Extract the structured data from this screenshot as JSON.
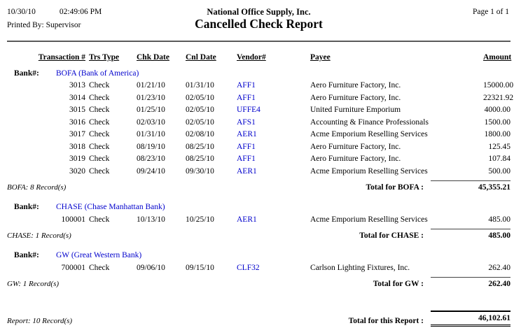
{
  "header": {
    "date": "10/30/10",
    "time": "02:49:06 PM",
    "printed_by": "Printed By: Supervisor",
    "company": "National Office Supply, Inc.",
    "title": "Cancelled Check Report",
    "page_info": "Page 1 of 1"
  },
  "columns": [
    "Transaction #",
    "Trs Type",
    "Chk Date",
    "Cnl Date",
    "Vendor#",
    "Payee",
    "Amount"
  ],
  "banks": [
    {
      "bank_label": "Bank#:",
      "bank_name": "BOFA (Bank of America)",
      "rows": [
        {
          "txn": "3013",
          "type": "Check",
          "chk": "01/21/10",
          "cnl": "01/31/10",
          "vendor": "AFF1",
          "payee": "Aero Furniture Factory, Inc.",
          "amount": "15000.00"
        },
        {
          "txn": "3014",
          "type": "Check",
          "chk": "01/23/10",
          "cnl": "02/05/10",
          "vendor": "AFF1",
          "payee": "Aero Furniture Factory, Inc.",
          "amount": "22321.92"
        },
        {
          "txn": "3015",
          "type": "Check",
          "chk": "01/25/10",
          "cnl": "02/05/10",
          "vendor": "UFFE4",
          "payee": "United Furniture Emporium",
          "amount": "4000.00"
        },
        {
          "txn": "3016",
          "type": "Check",
          "chk": "02/03/10",
          "cnl": "02/05/10",
          "vendor": "AFS1",
          "payee": "Accounting & Finance Professionals",
          "amount": "1500.00"
        },
        {
          "txn": "3017",
          "type": "Check",
          "chk": "01/31/10",
          "cnl": "02/08/10",
          "vendor": "AER1",
          "payee": "Acme Emporium Reselling Services",
          "amount": "1800.00"
        },
        {
          "txn": "3018",
          "type": "Check",
          "chk": "08/19/10",
          "cnl": "08/25/10",
          "vendor": "AFF1",
          "payee": "Aero Furniture Factory, Inc.",
          "amount": "125.45"
        },
        {
          "txn": "3019",
          "type": "Check",
          "chk": "08/23/10",
          "cnl": "08/25/10",
          "vendor": "AFF1",
          "payee": "Aero Furniture Factory, Inc.",
          "amount": "107.84"
        },
        {
          "txn": "3020",
          "type": "Check",
          "chk": "09/24/10",
          "cnl": "09/30/10",
          "vendor": "AER1",
          "payee": "Acme Emporium Reselling Services",
          "amount": "500.00"
        }
      ],
      "record_count": "BOFA: 8 Record(s)",
      "total_label": "Total for BOFA :",
      "total": "45,355.21"
    },
    {
      "bank_label": "Bank#:",
      "bank_name": "CHASE (Chase Manhattan Bank)",
      "rows": [
        {
          "txn": "100001",
          "type": "Check",
          "chk": "10/13/10",
          "cnl": "10/25/10",
          "vendor": "AER1",
          "payee": "Acme Emporium Reselling Services",
          "amount": "485.00"
        }
      ],
      "record_count": "CHASE: 1 Record(s)",
      "total_label": "Total for CHASE :",
      "total": "485.00"
    },
    {
      "bank_label": "Bank#:",
      "bank_name": "GW (Great Western Bank)",
      "rows": [
        {
          "txn": "700001",
          "type": "Check",
          "chk": "09/06/10",
          "cnl": "09/15/10",
          "vendor": "CLF32",
          "payee": "Carlson Lighting Fixtures, Inc.",
          "amount": "262.40"
        }
      ],
      "record_count": "GW: 1 Record(s)",
      "total_label": "Total for GW :",
      "total": "262.40"
    }
  ],
  "report": {
    "record_count": "Report: 10 Record(s)",
    "total_label": "Total for this Report :",
    "total": "46,102.61"
  },
  "colors": {
    "link_blue": "#0000CC",
    "rule_gray": "#5a5a5a"
  }
}
